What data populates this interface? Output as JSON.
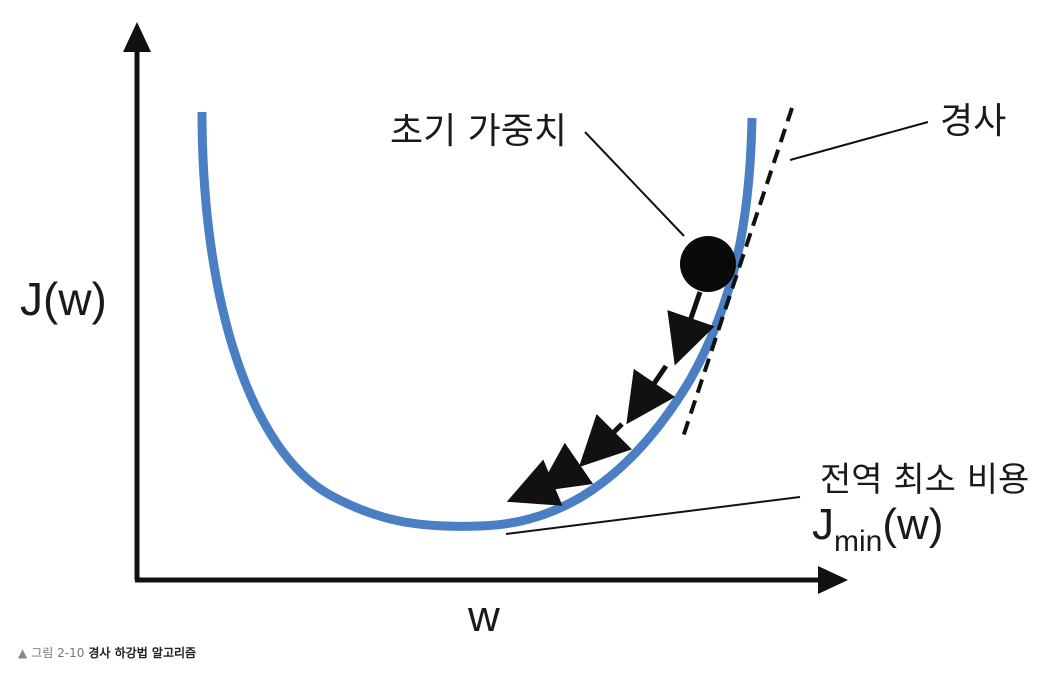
{
  "labels": {
    "initial_weight": "초기 가중치",
    "gradient": "경사",
    "global_min_cost": "전역 최소 비용",
    "jmin_main": "J",
    "jmin_sub": "min",
    "jmin_arg": "(w)",
    "y_axis": "J(w)",
    "x_axis": "w"
  },
  "caption": {
    "marker": "▲",
    "number": "그림 2-10",
    "title": "경사 하강법 알고리즘"
  },
  "colors": {
    "curve": "#4a7fc4",
    "axes": "#111111",
    "ball": "#0a0a0a",
    "text": "#1a1a1a"
  },
  "icons": {
    "initial_point": "filled-circle",
    "steps": "arrow-icon"
  }
}
